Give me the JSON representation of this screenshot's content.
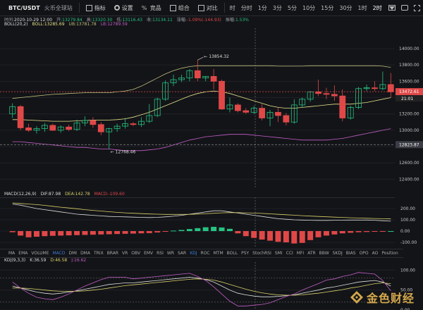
{
  "toolbar": {
    "symbol": "BTC/USDT",
    "exchange": "火币全球站",
    "items": [
      {
        "label": "指标",
        "icon": "indicator-icon"
      },
      {
        "label": "设置",
        "icon": "gear-icon"
      },
      {
        "label": "竞品",
        "icon": "percent-icon"
      },
      {
        "label": "组合",
        "icon": "combine-icon"
      },
      {
        "label": "对比",
        "icon": "compare-icon"
      }
    ],
    "timeframes": [
      "时",
      "分时",
      "1分",
      "3分",
      "5分",
      "10分",
      "15分",
      "30分",
      "1时",
      "2时"
    ],
    "active_timeframe": "2时"
  },
  "infobar": {
    "time_label": "时间:",
    "time": "2020-10-29 12:00",
    "open_label": "开:",
    "open": "13279.84",
    "high_label": "高:",
    "high": "13320.30",
    "low_label": "低:",
    "low": "13116.43",
    "close_label": "收:",
    "close": "13134.11",
    "change_label": "涨幅:",
    "change": "-1.09%(-144.93)",
    "amp_label": "振幅:",
    "amp": "1.53%"
  },
  "boll_legend": {
    "name": "BOLL(20,2)",
    "mid": "BOLL:13285.69",
    "ub": "UB:13781.78",
    "lb": "LB:12789.59"
  },
  "macd_legend": {
    "name": "MACD(12,26,9)",
    "dif": "DIF:87.98",
    "dea": "DEA:142.78",
    "macd": "MACD:-109.60"
  },
  "kdj_legend": {
    "name": "KDJ(9,3,3)",
    "k": "K:36.59",
    "d": "D:46.58",
    "j": "J:16.62"
  },
  "indicator_tabs": [
    "MA",
    "EMA",
    "VOLUME",
    "MACD",
    "DMI",
    "DMA",
    "TRIX",
    "BRAR",
    "VR",
    "OBV",
    "EMV",
    "RSI",
    "WR",
    "SAR",
    "KDJ",
    "ROC",
    "MTM",
    "BOLL",
    "PSY",
    "StochRSI",
    "SMI",
    "CCI",
    "MFI",
    "ATR",
    "BBW",
    "SKDJ",
    "BIAS",
    "OPO",
    "AO",
    "Position"
  ],
  "active_indicator_tabs": [
    "MACD",
    "KDJ"
  ],
  "colors": {
    "up": "#26c281",
    "down": "#e04848",
    "boll_mid": "#e6e38a",
    "boll_bands": "#bfbf7a",
    "boll_lower": "#c35fc7",
    "price_tag": "#e04848",
    "accent": "#3c7dd9"
  },
  "annotations": {
    "high_label": "13854.32",
    "low_label": "12768.46",
    "current_price": "13472.61",
    "countdown": "21:01",
    "dashed_price": "12823.87"
  },
  "watermark": {
    "text": "金色财经"
  },
  "chart_data": [
    {
      "type": "candlestick",
      "title": "BTC/USDT 2h",
      "ylim": [
        12300,
        14250
      ],
      "yticks": [
        12400,
        12600,
        12800,
        13000,
        13200,
        13400,
        13600,
        13800,
        14000
      ],
      "candles": [
        {
          "o": 13200,
          "h": 13330,
          "l": 13150,
          "c": 13290
        },
        {
          "o": 13290,
          "h": 13310,
          "l": 13000,
          "c": 13030
        },
        {
          "o": 13030,
          "h": 13080,
          "l": 12980,
          "c": 13000
        },
        {
          "o": 13000,
          "h": 13050,
          "l": 12960,
          "c": 13020
        },
        {
          "o": 13020,
          "h": 13090,
          "l": 12980,
          "c": 13060
        },
        {
          "o": 13060,
          "h": 13080,
          "l": 12990,
          "c": 13000
        },
        {
          "o": 13000,
          "h": 13060,
          "l": 12970,
          "c": 13040
        },
        {
          "o": 13040,
          "h": 13070,
          "l": 12990,
          "c": 13010
        },
        {
          "o": 13010,
          "h": 13130,
          "l": 12990,
          "c": 13090
        },
        {
          "o": 13090,
          "h": 13170,
          "l": 13050,
          "c": 13120
        },
        {
          "o": 13120,
          "h": 13160,
          "l": 13030,
          "c": 13070
        },
        {
          "o": 13070,
          "h": 13100,
          "l": 12940,
          "c": 12980
        },
        {
          "o": 12980,
          "h": 13030,
          "l": 12770,
          "c": 13020
        },
        {
          "o": 13020,
          "h": 13080,
          "l": 12980,
          "c": 13050
        },
        {
          "o": 13050,
          "h": 13150,
          "l": 13020,
          "c": 13080
        },
        {
          "o": 13080,
          "h": 13100,
          "l": 13050,
          "c": 13070
        },
        {
          "o": 13070,
          "h": 13160,
          "l": 13040,
          "c": 13110
        },
        {
          "o": 13110,
          "h": 13320,
          "l": 13090,
          "c": 13180
        },
        {
          "o": 13180,
          "h": 13400,
          "l": 13160,
          "c": 13380
        },
        {
          "o": 13380,
          "h": 13610,
          "l": 13360,
          "c": 13580
        },
        {
          "o": 13580,
          "h": 13680,
          "l": 13540,
          "c": 13620
        },
        {
          "o": 13620,
          "h": 13680,
          "l": 13590,
          "c": 13640
        },
        {
          "o": 13640,
          "h": 13750,
          "l": 13600,
          "c": 13730
        },
        {
          "o": 13730,
          "h": 13860,
          "l": 13600,
          "c": 13640
        },
        {
          "o": 13640,
          "h": 13660,
          "l": 13600,
          "c": 13660
        },
        {
          "o": 13660,
          "h": 13750,
          "l": 13500,
          "c": 13600
        },
        {
          "o": 13600,
          "h": 13620,
          "l": 13250,
          "c": 13260
        },
        {
          "o": 13260,
          "h": 13400,
          "l": 13220,
          "c": 13310
        },
        {
          "o": 13310,
          "h": 13330,
          "l": 13220,
          "c": 13240
        },
        {
          "o": 13240,
          "h": 13270,
          "l": 13200,
          "c": 13220
        },
        {
          "o": 13220,
          "h": 13300,
          "l": 13200,
          "c": 13270
        },
        {
          "o": 13270,
          "h": 13320,
          "l": 13120,
          "c": 13150
        },
        {
          "o": 13150,
          "h": 13250,
          "l": 13050,
          "c": 13220
        },
        {
          "o": 13220,
          "h": 13280,
          "l": 13100,
          "c": 13180
        },
        {
          "o": 13180,
          "h": 13210,
          "l": 13060,
          "c": 13100
        },
        {
          "o": 13100,
          "h": 13380,
          "l": 13080,
          "c": 13310
        },
        {
          "o": 13310,
          "h": 13400,
          "l": 13280,
          "c": 13380
        },
        {
          "o": 13380,
          "h": 13480,
          "l": 13350,
          "c": 13470
        },
        {
          "o": 13470,
          "h": 13620,
          "l": 13420,
          "c": 13450
        },
        {
          "o": 13450,
          "h": 13520,
          "l": 13380,
          "c": 13440
        },
        {
          "o": 13440,
          "h": 13550,
          "l": 13360,
          "c": 13420
        },
        {
          "o": 13420,
          "h": 13500,
          "l": 13110,
          "c": 13150
        },
        {
          "o": 13150,
          "h": 13300,
          "l": 13130,
          "c": 13280
        },
        {
          "o": 13280,
          "h": 13530,
          "l": 13260,
          "c": 13510
        },
        {
          "o": 13510,
          "h": 13560,
          "l": 13480,
          "c": 13520
        },
        {
          "o": 13520,
          "h": 13600,
          "l": 13480,
          "c": 13510
        },
        {
          "o": 13510,
          "h": 13720,
          "l": 13490,
          "c": 13560
        },
        {
          "o": 13560,
          "h": 13700,
          "l": 13400,
          "c": 13470
        }
      ],
      "boll_upper": [
        13390,
        13400,
        13410,
        13420,
        13430,
        13440,
        13445,
        13450,
        13455,
        13460,
        13460,
        13460,
        13460,
        13470,
        13480,
        13500,
        13540,
        13590,
        13640,
        13690,
        13730,
        13760,
        13780,
        13790,
        13790,
        13790,
        13790,
        13790,
        13790,
        13790,
        13790,
        13790,
        13790,
        13785,
        13785,
        13785,
        13785,
        13790,
        13790,
        13790,
        13790,
        13790,
        13790,
        13790,
        13790,
        13790,
        13785,
        13770
      ],
      "boll_mid": [
        13130,
        13130,
        13125,
        13120,
        13115,
        13110,
        13110,
        13110,
        13115,
        13120,
        13125,
        13125,
        13125,
        13130,
        13140,
        13160,
        13190,
        13220,
        13260,
        13300,
        13340,
        13380,
        13420,
        13450,
        13470,
        13480,
        13470,
        13450,
        13420,
        13390,
        13360,
        13330,
        13300,
        13280,
        13270,
        13270,
        13280,
        13290,
        13300,
        13310,
        13320,
        13320,
        13320,
        13330,
        13340,
        13360,
        13380,
        13400
      ],
      "boll_lower": [
        12860,
        12860,
        12850,
        12840,
        12830,
        12820,
        12810,
        12800,
        12790,
        12790,
        12780,
        12770,
        12770,
        12760,
        12750,
        12750,
        12750,
        12760,
        12770,
        12790,
        12820,
        12850,
        12880,
        12900,
        12920,
        12930,
        12940,
        12950,
        12950,
        12950,
        12940,
        12930,
        12920,
        12910,
        12900,
        12890,
        12880,
        12880,
        12880,
        12880,
        12890,
        12900,
        12920,
        12940,
        12960,
        12980,
        13000,
        13020
      ]
    },
    {
      "type": "bar+line",
      "title": "MACD(12,26,9)",
      "ylim": [
        -150,
        300
      ],
      "yticks": [
        -100,
        0,
        100,
        200
      ],
      "histogram": [
        -10,
        -40,
        -55,
        -50,
        -45,
        -42,
        -40,
        -38,
        -36,
        -34,
        -32,
        -30,
        -28,
        -26,
        -24,
        -22,
        -20,
        -18,
        -12,
        -6,
        4,
        10,
        18,
        26,
        34,
        38,
        32,
        20,
        -20,
        -45,
        -60,
        -75,
        -85,
        -95,
        -100,
        -110,
        -105,
        -80,
        -55,
        -40,
        -30,
        -20,
        -15,
        -10,
        -8,
        -4,
        -2,
        0
      ],
      "dif": [
        240,
        230,
        215,
        200,
        190,
        180,
        170,
        160,
        150,
        145,
        140,
        135,
        130,
        128,
        126,
        124,
        122,
        120,
        122,
        126,
        132,
        140,
        150,
        160,
        170,
        180,
        180,
        170,
        160,
        150,
        140,
        130,
        120,
        110,
        105,
        100,
        98,
        96,
        95,
        95,
        96,
        97,
        98,
        98,
        98,
        96,
        92,
        88
      ],
      "dea": [
        250,
        245,
        240,
        235,
        228,
        220,
        212,
        205,
        198,
        190,
        184,
        178,
        172,
        166,
        162,
        158,
        155,
        152,
        150,
        148,
        148,
        148,
        149,
        151,
        154,
        158,
        162,
        164,
        164,
        162,
        160,
        157,
        153,
        149,
        145,
        141,
        137,
        133,
        130,
        127,
        124,
        121,
        118,
        116,
        114,
        112,
        110,
        108
      ]
    },
    {
      "type": "line",
      "title": "KDJ(9,3,3)",
      "ylim": [
        0,
        120
      ],
      "yticks": [
        0,
        50,
        100
      ],
      "k": [
        60,
        55,
        50,
        45,
        42,
        40,
        42,
        45,
        48,
        52,
        56,
        60,
        64,
        66,
        68,
        68,
        70,
        72,
        74,
        76,
        78,
        80,
        82,
        80,
        76,
        70,
        60,
        50,
        42,
        38,
        35,
        33,
        33,
        34,
        36,
        38,
        42,
        46,
        50,
        55,
        58,
        62,
        66,
        70,
        72,
        74,
        70,
        60
      ],
      "d": [
        55,
        55,
        54,
        52,
        50,
        48,
        47,
        47,
        47,
        48,
        50,
        52,
        55,
        58,
        61,
        63,
        65,
        67,
        69,
        71,
        73,
        75,
        77,
        78,
        77,
        75,
        70,
        64,
        58,
        52,
        47,
        43,
        40,
        38,
        37,
        37,
        38,
        40,
        42,
        45,
        48,
        51,
        55,
        58,
        62,
        66,
        68,
        66
      ],
      "j": [
        70,
        55,
        42,
        32,
        28,
        26,
        32,
        40,
        50,
        60,
        68,
        76,
        82,
        82,
        82,
        78,
        80,
        82,
        84,
        86,
        88,
        90,
        92,
        84,
        74,
        58,
        40,
        22,
        10,
        10,
        12,
        14,
        18,
        26,
        34,
        40,
        50,
        58,
        66,
        75,
        78,
        84,
        88,
        94,
        92,
        90,
        74,
        48
      ]
    }
  ]
}
